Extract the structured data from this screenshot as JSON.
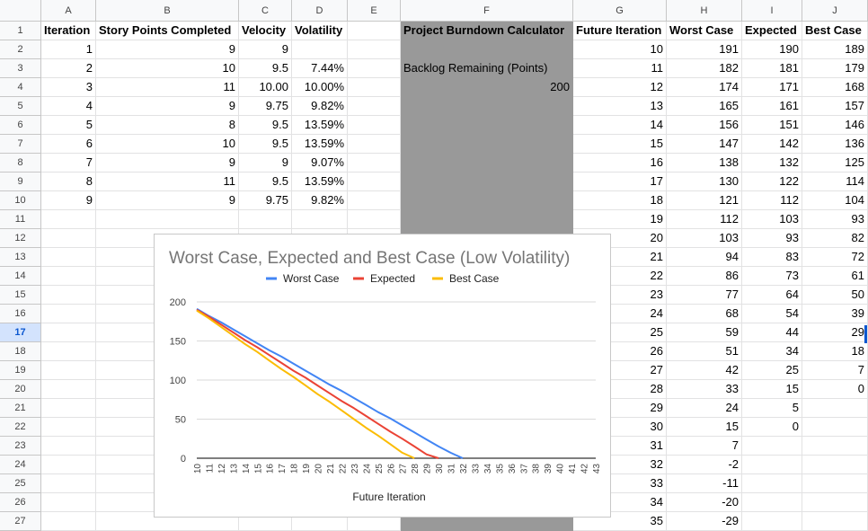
{
  "sheet": {
    "columns": [
      "A",
      "B",
      "C",
      "D",
      "E",
      "F",
      "G",
      "H",
      "I",
      "J"
    ],
    "rows": [
      "1",
      "2",
      "3",
      "4",
      "5",
      "6",
      "7",
      "8",
      "9",
      "10",
      "11",
      "12",
      "13",
      "14",
      "15",
      "16",
      "17",
      "18",
      "19",
      "20",
      "21",
      "22",
      "23",
      "24",
      "25",
      "26",
      "27"
    ],
    "selected_row": "17",
    "headers": {
      "A": "Iteration",
      "B": "Story Points Completed",
      "C": "Velocity",
      "D": "Volatility",
      "F": "Project Burndown Calculator",
      "G": "Future Iteration",
      "H": "Worst Case",
      "I": "Expected",
      "J": "Best Case"
    },
    "history": [
      {
        "iter": "1",
        "pts": "9",
        "vel": "9",
        "vol": ""
      },
      {
        "iter": "2",
        "pts": "10",
        "vel": "9.5",
        "vol": "7.44%"
      },
      {
        "iter": "3",
        "pts": "11",
        "vel": "10.00",
        "vol": "10.00%"
      },
      {
        "iter": "4",
        "pts": "9",
        "vel": "9.75",
        "vol": "9.82%"
      },
      {
        "iter": "5",
        "pts": "8",
        "vel": "9.5",
        "vol": "13.59%"
      },
      {
        "iter": "6",
        "pts": "10",
        "vel": "9.5",
        "vol": "13.59%"
      },
      {
        "iter": "7",
        "pts": "9",
        "vel": "9",
        "vol": "9.07%"
      },
      {
        "iter": "8",
        "pts": "11",
        "vel": "9.5",
        "vol": "13.59%"
      },
      {
        "iter": "9",
        "pts": "9",
        "vel": "9.75",
        "vol": "9.82%"
      }
    ],
    "calculator": {
      "backlog_label": "Backlog Remaining (Points)",
      "backlog_value": "200"
    },
    "forecast": [
      {
        "it": "10",
        "w": "191",
        "e": "190",
        "b": "189"
      },
      {
        "it": "11",
        "w": "182",
        "e": "181",
        "b": "179"
      },
      {
        "it": "12",
        "w": "174",
        "e": "171",
        "b": "168"
      },
      {
        "it": "13",
        "w": "165",
        "e": "161",
        "b": "157"
      },
      {
        "it": "14",
        "w": "156",
        "e": "151",
        "b": "146"
      },
      {
        "it": "15",
        "w": "147",
        "e": "142",
        "b": "136"
      },
      {
        "it": "16",
        "w": "138",
        "e": "132",
        "b": "125"
      },
      {
        "it": "17",
        "w": "130",
        "e": "122",
        "b": "114"
      },
      {
        "it": "18",
        "w": "121",
        "e": "112",
        "b": "104"
      },
      {
        "it": "19",
        "w": "112",
        "e": "103",
        "b": "93"
      },
      {
        "it": "20",
        "w": "103",
        "e": "93",
        "b": "82"
      },
      {
        "it": "21",
        "w": "94",
        "e": "83",
        "b": "72"
      },
      {
        "it": "22",
        "w": "86",
        "e": "73",
        "b": "61"
      },
      {
        "it": "23",
        "w": "77",
        "e": "64",
        "b": "50"
      },
      {
        "it": "24",
        "w": "68",
        "e": "54",
        "b": "39"
      },
      {
        "it": "25",
        "w": "59",
        "e": "44",
        "b": "29"
      },
      {
        "it": "26",
        "w": "51",
        "e": "34",
        "b": "18"
      },
      {
        "it": "27",
        "w": "42",
        "e": "25",
        "b": "7"
      },
      {
        "it": "28",
        "w": "33",
        "e": "15",
        "b": "0"
      },
      {
        "it": "29",
        "w": "24",
        "e": "5",
        "b": ""
      },
      {
        "it": "30",
        "w": "15",
        "e": "0",
        "b": ""
      },
      {
        "it": "31",
        "w": "7",
        "e": "",
        "b": ""
      },
      {
        "it": "32",
        "w": "-2",
        "e": "",
        "b": ""
      },
      {
        "it": "33",
        "w": "-11",
        "e": "",
        "b": ""
      },
      {
        "it": "34",
        "w": "-20",
        "e": "",
        "b": ""
      },
      {
        "it": "35",
        "w": "-29",
        "e": "",
        "b": ""
      }
    ]
  },
  "chart_data": {
    "type": "line",
    "title": "Worst Case, Expected and Best Case (Low Volatility)",
    "xlabel": "Future Iteration",
    "ylabel": "",
    "ylim": [
      0,
      200
    ],
    "yticks": [
      0,
      50,
      100,
      150,
      200
    ],
    "legend_position": "top",
    "categories": [
      "10",
      "11",
      "12",
      "13",
      "14",
      "15",
      "16",
      "17",
      "18",
      "19",
      "20",
      "21",
      "22",
      "23",
      "24",
      "25",
      "26",
      "27",
      "28",
      "29",
      "30",
      "31",
      "32",
      "33",
      "34",
      "35",
      "36",
      "37",
      "38",
      "39",
      "40",
      "41",
      "42",
      "43"
    ],
    "series": [
      {
        "name": "Worst Case",
        "color": "#4285f4",
        "values": [
          191,
          182,
          174,
          165,
          156,
          147,
          138,
          130,
          121,
          112,
          103,
          94,
          86,
          77,
          68,
          59,
          51,
          42,
          33,
          24,
          15,
          7,
          0,
          null,
          null,
          null,
          null,
          null,
          null,
          null,
          null,
          null,
          null,
          null
        ]
      },
      {
        "name": "Expected",
        "color": "#ea4335",
        "values": [
          190,
          181,
          171,
          161,
          151,
          142,
          132,
          122,
          112,
          103,
          93,
          83,
          73,
          64,
          54,
          44,
          34,
          25,
          15,
          5,
          0,
          null,
          null,
          null,
          null,
          null,
          null,
          null,
          null,
          null,
          null,
          null,
          null,
          null
        ]
      },
      {
        "name": "Best Case",
        "color": "#fbbc04",
        "values": [
          189,
          179,
          168,
          157,
          146,
          136,
          125,
          114,
          104,
          93,
          82,
          72,
          61,
          50,
          39,
          29,
          18,
          7,
          0,
          null,
          null,
          null,
          null,
          null,
          null,
          null,
          null,
          null,
          null,
          null,
          null,
          null,
          null,
          null
        ]
      }
    ]
  }
}
